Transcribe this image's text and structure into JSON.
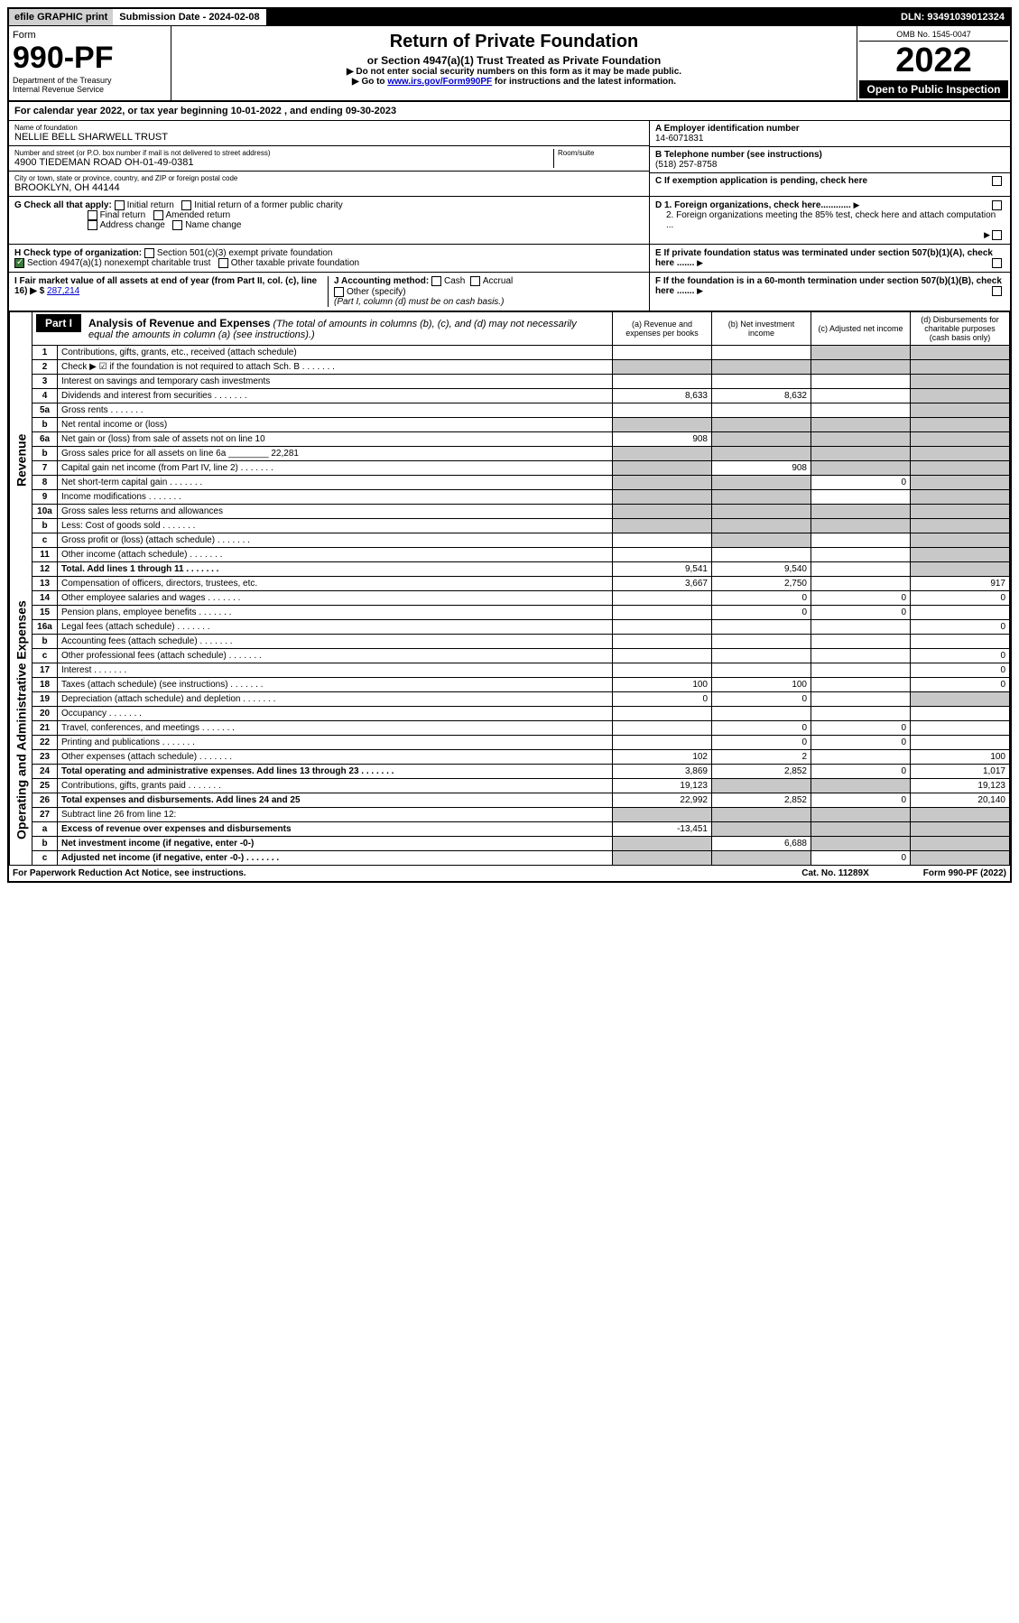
{
  "topbar": {
    "efile": "efile GRAPHIC print",
    "submission": "Submission Date - 2024-02-08",
    "dln": "DLN: 93491039012324"
  },
  "header": {
    "form_word": "Form",
    "form_number": "990-PF",
    "dept1": "Department of the Treasury",
    "dept2": "Internal Revenue Service",
    "title": "Return of Private Foundation",
    "subtitle": "or Section 4947(a)(1) Trust Treated as Private Foundation",
    "note1": "▶ Do not enter social security numbers on this form as it may be made public.",
    "note2_pre": "▶ Go to ",
    "note2_link": "www.irs.gov/Form990PF",
    "note2_post": " for instructions and the latest information.",
    "omb": "OMB No. 1545-0047",
    "year": "2022",
    "open_public": "Open to Public Inspection"
  },
  "calendar": {
    "text_pre": "For calendar year 2022, or tax year beginning ",
    "begin": "10-01-2022",
    "mid": " , and ending ",
    "end": "09-30-2023"
  },
  "entity": {
    "name_label": "Name of foundation",
    "name": "NELLIE BELL SHARWELL TRUST",
    "addr_label": "Number and street (or P.O. box number if mail is not delivered to street address)",
    "addr": "4900 TIEDEMAN ROAD OH-01-49-0381",
    "room_label": "Room/suite",
    "city_label": "City or town, state or province, country, and ZIP or foreign postal code",
    "city": "BROOKLYN, OH  44144",
    "a_label": "A Employer identification number",
    "a_val": "14-6071831",
    "b_label": "B Telephone number (see instructions)",
    "b_val": "(518) 257-8758",
    "c_label": "C If exemption application is pending, check here"
  },
  "checks": {
    "g_label": "G Check all that apply:",
    "g1": "Initial return",
    "g2": "Initial return of a former public charity",
    "g3": "Final return",
    "g4": "Amended return",
    "g5": "Address change",
    "g6": "Name change",
    "h_label": "H Check type of organization:",
    "h1": "Section 501(c)(3) exempt private foundation",
    "h2": "Section 4947(a)(1) nonexempt charitable trust",
    "h3": "Other taxable private foundation",
    "i_label": "I Fair market value of all assets at end of year (from Part II, col. (c), line 16) ▶ $",
    "i_val": "287,214",
    "j_label": "J Accounting method:",
    "j1": "Cash",
    "j2": "Accrual",
    "j3": "Other (specify)",
    "j_note": "(Part I, column (d) must be on cash basis.)",
    "d1": "D 1. Foreign organizations, check here............",
    "d2": "2. Foreign organizations meeting the 85% test, check here and attach computation ...",
    "e": "E If private foundation status was terminated under section 507(b)(1)(A), check here .......",
    "f": "F If the foundation is in a 60-month termination under section 507(b)(1)(B), check here ......."
  },
  "part1": {
    "label": "Part I",
    "title": "Analysis of Revenue and Expenses",
    "title_note": "(The total of amounts in columns (b), (c), and (d) may not necessarily equal the amounts in column (a) (see instructions).)",
    "col_a": "(a) Revenue and expenses per books",
    "col_b": "(b) Net investment income",
    "col_c": "(c) Adjusted net income",
    "col_d": "(d) Disbursements for charitable purposes (cash basis only)"
  },
  "side_labels": {
    "revenue": "Revenue",
    "expenses": "Operating and Administrative Expenses"
  },
  "rows": [
    {
      "n": "1",
      "d": "Contributions, gifts, grants, etc., received (attach schedule)",
      "a": "",
      "b": "",
      "c": "s",
      "dd": "s"
    },
    {
      "n": "2",
      "d": "Check ▶ ☑ if the foundation is not required to attach Sch. B",
      "dots": true,
      "a": "s",
      "b": "s",
      "c": "s",
      "dd": "s"
    },
    {
      "n": "3",
      "d": "Interest on savings and temporary cash investments",
      "a": "",
      "b": "",
      "c": "",
      "dd": "s"
    },
    {
      "n": "4",
      "d": "Dividends and interest from securities",
      "dots": true,
      "a": "8,633",
      "b": "8,632",
      "c": "",
      "dd": "s"
    },
    {
      "n": "5a",
      "d": "Gross rents",
      "dots": true,
      "a": "",
      "b": "",
      "c": "",
      "dd": "s"
    },
    {
      "n": "b",
      "d": "Net rental income or (loss)",
      "a": "s",
      "b": "s",
      "c": "s",
      "dd": "s"
    },
    {
      "n": "6a",
      "d": "Net gain or (loss) from sale of assets not on line 10",
      "a": "908",
      "b": "s",
      "c": "s",
      "dd": "s"
    },
    {
      "n": "b",
      "d": "Gross sales price for all assets on line 6a ________ 22,281",
      "a": "s",
      "b": "s",
      "c": "s",
      "dd": "s"
    },
    {
      "n": "7",
      "d": "Capital gain net income (from Part IV, line 2)",
      "dots": true,
      "a": "s",
      "b": "908",
      "c": "s",
      "dd": "s"
    },
    {
      "n": "8",
      "d": "Net short-term capital gain",
      "dots": true,
      "a": "s",
      "b": "s",
      "c": "0",
      "dd": "s"
    },
    {
      "n": "9",
      "d": "Income modifications",
      "dots": true,
      "a": "s",
      "b": "s",
      "c": "",
      "dd": "s"
    },
    {
      "n": "10a",
      "d": "Gross sales less returns and allowances",
      "a": "s",
      "b": "s",
      "c": "s",
      "dd": "s"
    },
    {
      "n": "b",
      "d": "Less: Cost of goods sold",
      "dots": true,
      "a": "s",
      "b": "s",
      "c": "s",
      "dd": "s"
    },
    {
      "n": "c",
      "d": "Gross profit or (loss) (attach schedule)",
      "dots": true,
      "a": "",
      "b": "s",
      "c": "",
      "dd": "s"
    },
    {
      "n": "11",
      "d": "Other income (attach schedule)",
      "dots": true,
      "a": "",
      "b": "",
      "c": "",
      "dd": "s"
    },
    {
      "n": "12",
      "d": "Total. Add lines 1 through 11",
      "dots": true,
      "bold": true,
      "a": "9,541",
      "b": "9,540",
      "c": "",
      "dd": "s"
    },
    {
      "n": "13",
      "d": "Compensation of officers, directors, trustees, etc.",
      "a": "3,667",
      "b": "2,750",
      "c": "",
      "dd": "917"
    },
    {
      "n": "14",
      "d": "Other employee salaries and wages",
      "dots": true,
      "a": "",
      "b": "0",
      "c": "0",
      "dd": "0"
    },
    {
      "n": "15",
      "d": "Pension plans, employee benefits",
      "dots": true,
      "a": "",
      "b": "0",
      "c": "0",
      "dd": ""
    },
    {
      "n": "16a",
      "d": "Legal fees (attach schedule)",
      "dots": true,
      "a": "",
      "b": "",
      "c": "",
      "dd": "0"
    },
    {
      "n": "b",
      "d": "Accounting fees (attach schedule)",
      "dots": true,
      "a": "",
      "b": "",
      "c": "",
      "dd": ""
    },
    {
      "n": "c",
      "d": "Other professional fees (attach schedule)",
      "dots": true,
      "a": "",
      "b": "",
      "c": "",
      "dd": "0"
    },
    {
      "n": "17",
      "d": "Interest",
      "dots": true,
      "a": "",
      "b": "",
      "c": "",
      "dd": "0"
    },
    {
      "n": "18",
      "d": "Taxes (attach schedule) (see instructions)",
      "dots": true,
      "a": "100",
      "b": "100",
      "c": "",
      "dd": "0"
    },
    {
      "n": "19",
      "d": "Depreciation (attach schedule) and depletion",
      "dots": true,
      "a": "0",
      "b": "0",
      "c": "",
      "dd": "s"
    },
    {
      "n": "20",
      "d": "Occupancy",
      "dots": true,
      "a": "",
      "b": "",
      "c": "",
      "dd": ""
    },
    {
      "n": "21",
      "d": "Travel, conferences, and meetings",
      "dots": true,
      "a": "",
      "b": "0",
      "c": "0",
      "dd": ""
    },
    {
      "n": "22",
      "d": "Printing and publications",
      "dots": true,
      "a": "",
      "b": "0",
      "c": "0",
      "dd": ""
    },
    {
      "n": "23",
      "d": "Other expenses (attach schedule)",
      "dots": true,
      "a": "102",
      "b": "2",
      "c": "",
      "dd": "100"
    },
    {
      "n": "24",
      "d": "Total operating and administrative expenses. Add lines 13 through 23",
      "dots": true,
      "bold": true,
      "a": "3,869",
      "b": "2,852",
      "c": "0",
      "dd": "1,017"
    },
    {
      "n": "25",
      "d": "Contributions, gifts, grants paid",
      "dots": true,
      "a": "19,123",
      "b": "s",
      "c": "s",
      "dd": "19,123"
    },
    {
      "n": "26",
      "d": "Total expenses and disbursements. Add lines 24 and 25",
      "bold": true,
      "a": "22,992",
      "b": "2,852",
      "c": "0",
      "dd": "20,140"
    },
    {
      "n": "27",
      "d": "Subtract line 26 from line 12:",
      "a": "s",
      "b": "s",
      "c": "s",
      "dd": "s"
    },
    {
      "n": "a",
      "d": "Excess of revenue over expenses and disbursements",
      "bold": true,
      "a": "-13,451",
      "b": "s",
      "c": "s",
      "dd": "s"
    },
    {
      "n": "b",
      "d": "Net investment income (if negative, enter -0-)",
      "bold": true,
      "a": "s",
      "b": "6,688",
      "c": "s",
      "dd": "s"
    },
    {
      "n": "c",
      "d": "Adjusted net income (if negative, enter -0-)",
      "dots": true,
      "bold": true,
      "a": "s",
      "b": "s",
      "c": "0",
      "dd": "s"
    }
  ],
  "footer": {
    "left": "For Paperwork Reduction Act Notice, see instructions.",
    "mid": "Cat. No. 11289X",
    "right": "Form 990-PF (2022)"
  }
}
